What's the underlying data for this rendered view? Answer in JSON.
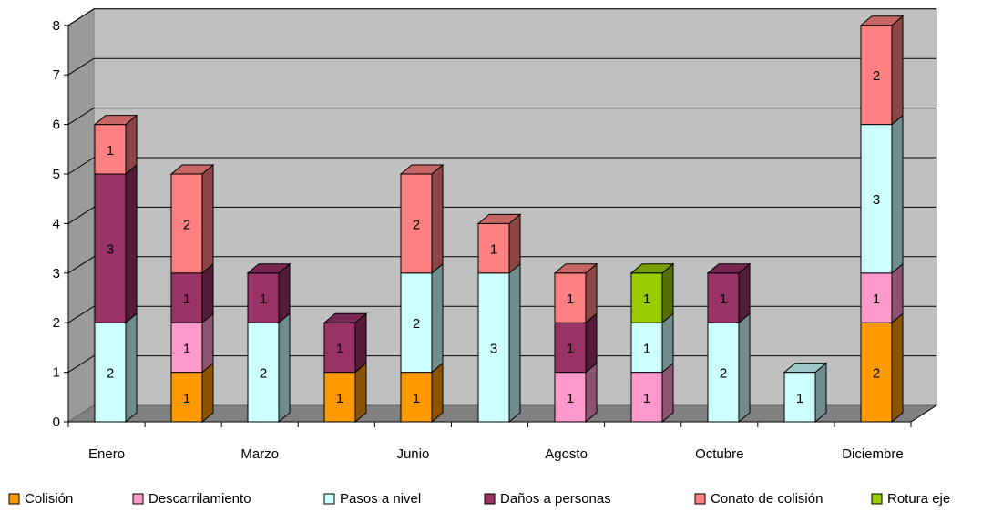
{
  "chart_data": {
    "type": "bar",
    "stacked": true,
    "three_d": true,
    "categories": [
      "Enero",
      "",
      "Marzo",
      "",
      "Junio",
      "",
      "Agosto",
      "",
      "Octubre",
      "",
      "Diciembre"
    ],
    "series": [
      {
        "name": "Colisión",
        "color": "#FF9900",
        "values": [
          0,
          1,
          0,
          1,
          1,
          0,
          0,
          0,
          0,
          0,
          2
        ]
      },
      {
        "name": "Descarrilamiento",
        "color": "#FF99CC",
        "values": [
          0,
          1,
          0,
          0,
          0,
          0,
          1,
          1,
          0,
          0,
          1
        ]
      },
      {
        "name": "Pasos a nivel",
        "color": "#CCFFFF",
        "values": [
          2,
          0,
          2,
          0,
          2,
          3,
          0,
          1,
          2,
          1,
          3
        ]
      },
      {
        "name": "Daños a personas",
        "color": "#993366",
        "values": [
          3,
          1,
          1,
          1,
          0,
          0,
          1,
          0,
          1,
          0,
          0
        ]
      },
      {
        "name": "Conato de colisión",
        "color": "#FF8080",
        "values": [
          1,
          2,
          0,
          0,
          2,
          1,
          1,
          0,
          0,
          0,
          2
        ]
      },
      {
        "name": "Rotura eje",
        "color": "#99CC00",
        "values": [
          0,
          0,
          0,
          0,
          0,
          0,
          0,
          1,
          0,
          0,
          0
        ]
      }
    ],
    "y_ticks": [
      "0",
      "1",
      "2",
      "3",
      "4",
      "5",
      "6",
      "7",
      "8"
    ],
    "ylim": [
      0,
      8
    ],
    "grid": true,
    "legend": "bottom",
    "plot_wall_color": "#C0C0C0",
    "floor_color": "#808080",
    "title": "",
    "xlabel": "",
    "ylabel": ""
  }
}
